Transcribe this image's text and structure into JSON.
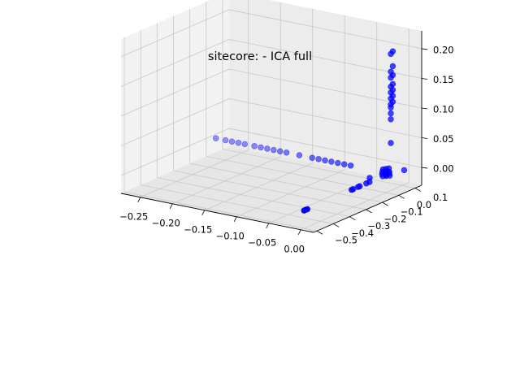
{
  "chart_data": {
    "type": "scatter",
    "projection": "3d",
    "title": "sitecore: - ICA full",
    "xlabel": "",
    "ylabel": "",
    "zlabel": "",
    "grid": true,
    "marker_color": "#0000ff",
    "x_ticks": [
      "−0.25",
      "−0.20",
      "−0.15",
      "−0.10",
      "−0.05",
      "0.00"
    ],
    "y_ticks": [
      "−0.5",
      "−0.4",
      "−0.3",
      "−0.2",
      "−0.1",
      "0.0",
      "0.1"
    ],
    "z_ticks": [
      "0.00",
      "0.05",
      "0.10",
      "0.15",
      "0.20"
    ],
    "xlim": [
      -0.28,
      0.02
    ],
    "ylim": [
      -0.52,
      0.14
    ],
    "zlim": [
      -0.03,
      0.23
    ],
    "points": [
      {
        "x": -0.27,
        "y": 0.02,
        "z": 0.0
      },
      {
        "x": -0.255,
        "y": 0.02,
        "z": 0.0
      },
      {
        "x": -0.245,
        "y": 0.02,
        "z": 0.0
      },
      {
        "x": -0.235,
        "y": 0.02,
        "z": 0.0
      },
      {
        "x": -0.225,
        "y": 0.02,
        "z": 0.0
      },
      {
        "x": -0.21,
        "y": 0.02,
        "z": 0.0
      },
      {
        "x": -0.2,
        "y": 0.02,
        "z": 0.0
      },
      {
        "x": -0.19,
        "y": 0.02,
        "z": 0.0
      },
      {
        "x": -0.18,
        "y": 0.02,
        "z": 0.0
      },
      {
        "x": -0.17,
        "y": 0.02,
        "z": 0.0
      },
      {
        "x": -0.16,
        "y": 0.02,
        "z": 0.0
      },
      {
        "x": -0.14,
        "y": 0.02,
        "z": 0.0
      },
      {
        "x": -0.12,
        "y": 0.02,
        "z": 0.0
      },
      {
        "x": -0.11,
        "y": 0.02,
        "z": 0.0
      },
      {
        "x": -0.1,
        "y": 0.02,
        "z": 0.0
      },
      {
        "x": -0.09,
        "y": 0.02,
        "z": 0.0
      },
      {
        "x": -0.08,
        "y": 0.02,
        "z": 0.0
      },
      {
        "x": -0.07,
        "y": 0.02,
        "z": 0.0
      },
      {
        "x": -0.06,
        "y": 0.02,
        "z": 0.0
      },
      {
        "x": 0.0,
        "y": 0.0,
        "z": 0.0
      },
      {
        "x": 0.0,
        "y": 0.0,
        "z": 0.005
      },
      {
        "x": 0.0,
        "y": 0.0,
        "z": 0.01
      },
      {
        "x": 0.003,
        "y": -0.01,
        "z": 0.0
      },
      {
        "x": -0.003,
        "y": 0.01,
        "z": 0.0
      },
      {
        "x": 0.004,
        "y": 0.005,
        "z": 0.005
      },
      {
        "x": -0.004,
        "y": -0.005,
        "z": 0.005
      },
      {
        "x": 0.002,
        "y": 0.01,
        "z": 0.01
      },
      {
        "x": -0.002,
        "y": -0.01,
        "z": 0.01
      },
      {
        "x": 0.006,
        "y": 0.0,
        "z": 0.0
      },
      {
        "x": -0.006,
        "y": 0.0,
        "z": 0.0
      },
      {
        "x": 0.0,
        "y": 0.02,
        "z": 0.0
      },
      {
        "x": 0.0,
        "y": -0.02,
        "z": 0.0
      },
      {
        "x": 0.008,
        "y": 0.08,
        "z": 0.0
      },
      {
        "x": -0.01,
        "y": -0.06,
        "z": 0.0
      },
      {
        "x": 0.0,
        "y": 0.03,
        "z": 0.05
      },
      {
        "x": 0.0,
        "y": 0.03,
        "z": 0.09
      },
      {
        "x": 0.0,
        "y": 0.03,
        "z": 0.1
      },
      {
        "x": 0.0,
        "y": 0.03,
        "z": 0.11
      },
      {
        "x": 0.0,
        "y": 0.03,
        "z": 0.115
      },
      {
        "x": 0.003,
        "y": 0.03,
        "z": 0.12
      },
      {
        "x": 0.0,
        "y": 0.03,
        "z": 0.125
      },
      {
        "x": 0.003,
        "y": 0.03,
        "z": 0.13
      },
      {
        "x": 0.0,
        "y": 0.03,
        "z": 0.135
      },
      {
        "x": 0.003,
        "y": 0.03,
        "z": 0.14
      },
      {
        "x": 0.0,
        "y": 0.03,
        "z": 0.145
      },
      {
        "x": 0.003,
        "y": 0.03,
        "z": 0.15
      },
      {
        "x": 0.0,
        "y": 0.03,
        "z": 0.16
      },
      {
        "x": 0.003,
        "y": 0.03,
        "z": 0.165
      },
      {
        "x": 0.0,
        "y": 0.03,
        "z": 0.17
      },
      {
        "x": 0.003,
        "y": 0.03,
        "z": 0.18
      },
      {
        "x": 0.0,
        "y": 0.03,
        "z": 0.2
      },
      {
        "x": 0.003,
        "y": 0.03,
        "z": 0.205
      },
      {
        "x": 0.0,
        "y": -0.1,
        "z": 0.0
      },
      {
        "x": 0.0,
        "y": -0.12,
        "z": 0.0
      },
      {
        "x": 0.0,
        "y": -0.16,
        "z": 0.0
      },
      {
        "x": 0.0,
        "y": -0.17,
        "z": 0.0
      },
      {
        "x": 0.0,
        "y": -0.2,
        "z": 0.0
      },
      {
        "x": 0.0,
        "y": -0.21,
        "z": 0.0
      },
      {
        "x": 0.0,
        "y": -0.48,
        "z": 0.0
      },
      {
        "x": 0.0,
        "y": -0.49,
        "z": 0.0
      },
      {
        "x": 0.0,
        "y": -0.5,
        "z": 0.0
      }
    ]
  }
}
